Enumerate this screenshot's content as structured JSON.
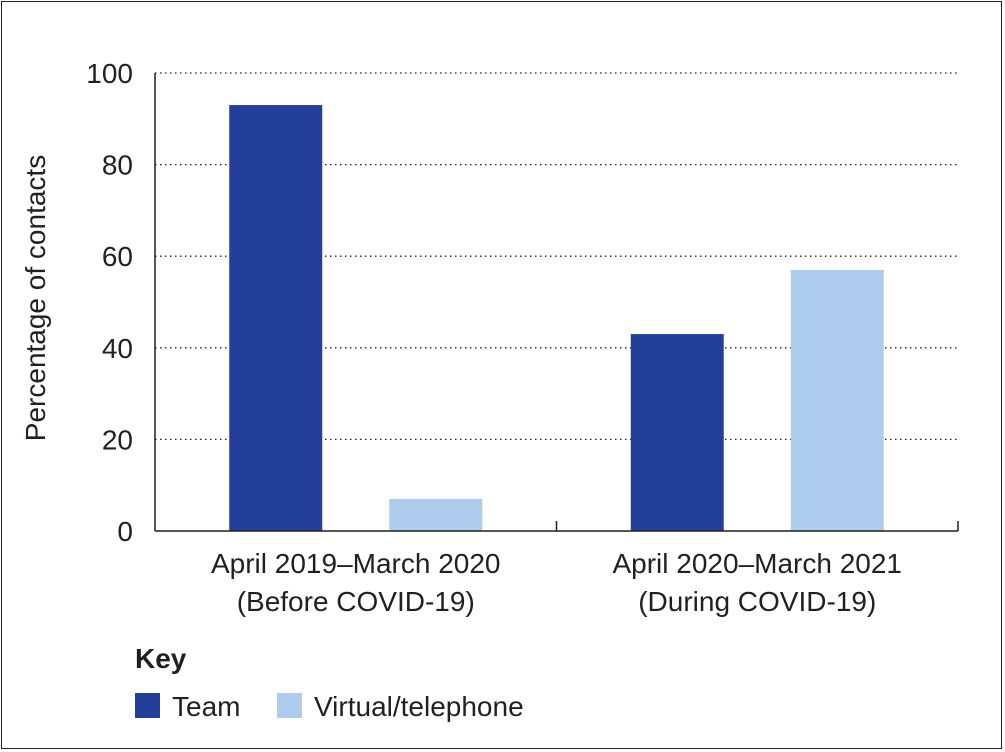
{
  "chart_data": {
    "type": "bar",
    "categories": [
      [
        "April 2019–March 2020",
        "(Before COVID-19)"
      ],
      [
        "April 2020–March 2021",
        "(During COVID-19)"
      ]
    ],
    "series": [
      {
        "name": "Team",
        "color": "#233f99",
        "values": [
          93,
          43
        ]
      },
      {
        "name": "Virtual/telephone",
        "color": "#aecdec",
        "values": [
          7,
          57
        ]
      }
    ],
    "title": "",
    "xlabel": "",
    "ylabel": "Percentage of contacts",
    "ylim": [
      0,
      100
    ],
    "yticks": [
      0,
      20,
      40,
      60,
      80,
      100
    ],
    "grid": "dotted horizontal",
    "legend": {
      "title": "Key",
      "placement": "bottom-left"
    }
  }
}
